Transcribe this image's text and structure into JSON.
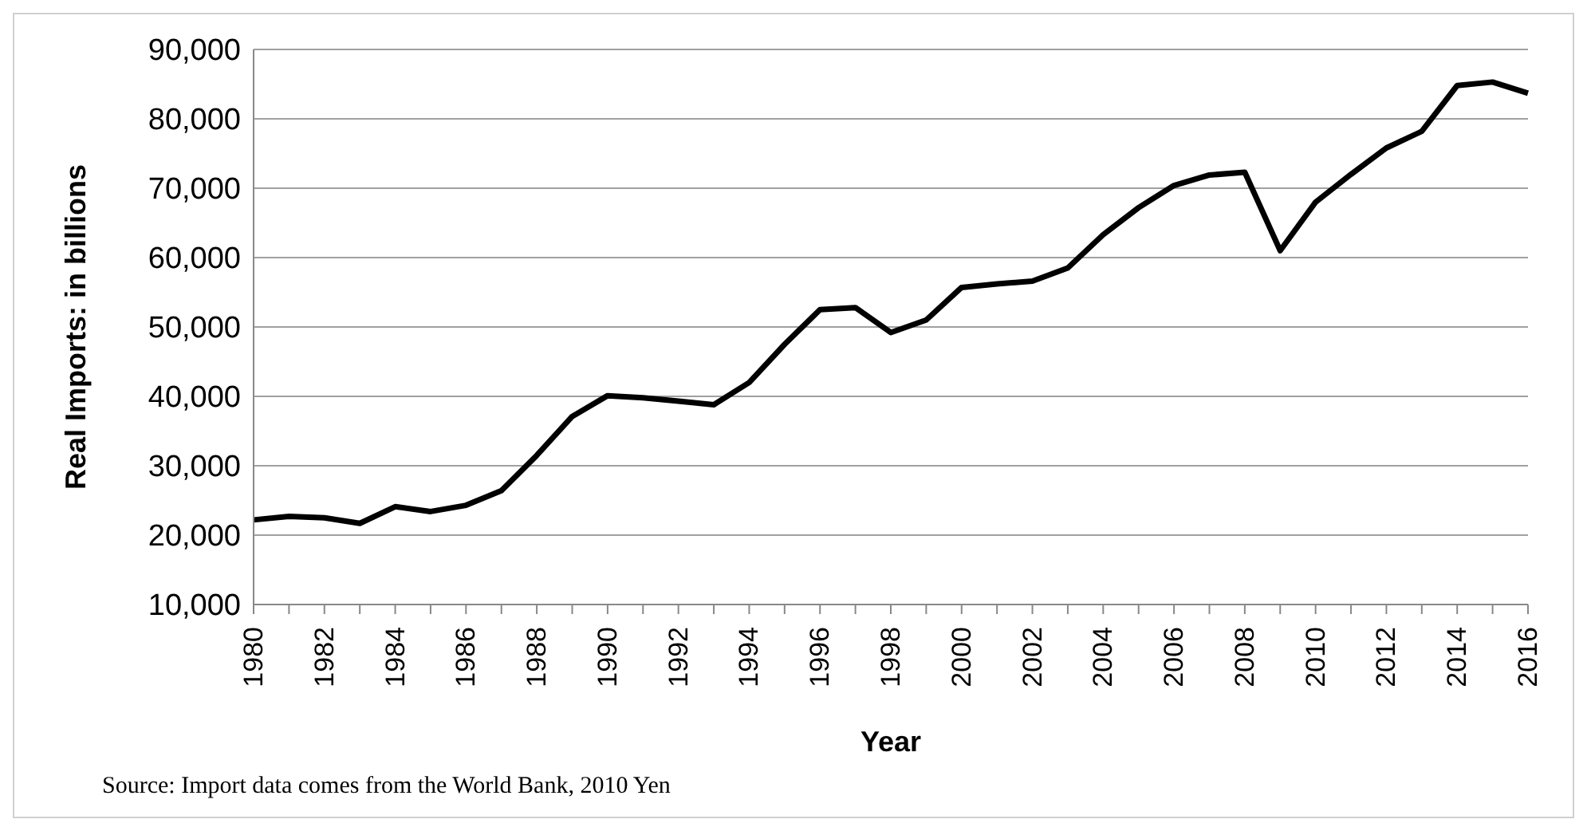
{
  "chart_data": {
    "type": "line",
    "xlabel": "Year",
    "ylabel": "Real Imports: in billions",
    "categories": [
      "1980",
      null,
      "1982",
      null,
      "1984",
      null,
      "1986",
      null,
      "1988",
      null,
      "1990",
      null,
      "1992",
      null,
      "1994",
      null,
      "1996",
      null,
      "1998",
      null,
      "2000",
      null,
      "2002",
      null,
      "2004",
      null,
      "2006",
      null,
      "2008",
      null,
      "2010",
      null,
      "2012",
      null,
      "2014",
      null,
      "2016"
    ],
    "series": [
      {
        "color": "#000000",
        "values": [
          22200,
          22700,
          22500,
          21700,
          24100,
          23400,
          24300,
          26400,
          31500,
          37100,
          40100,
          39800,
          39300,
          38800,
          42000,
          47500,
          52500,
          52800,
          49200,
          51000,
          55700,
          56200,
          56600,
          58500,
          63300,
          67200,
          70400,
          71900,
          72300,
          61000,
          68000,
          72000,
          75800,
          78200,
          84800,
          85300,
          83700
        ]
      }
    ],
    "ylim": [
      10000,
      90000
    ],
    "yticks": [
      {
        "value": 10000,
        "label": "10,000"
      },
      {
        "value": 20000,
        "label": "20,000"
      },
      {
        "value": 30000,
        "label": "30,000"
      },
      {
        "value": 40000,
        "label": "40,000"
      },
      {
        "value": 50000,
        "label": "50,000"
      },
      {
        "value": 60000,
        "label": "60,000"
      },
      {
        "value": 70000,
        "label": "70,000"
      },
      {
        "value": 80000,
        "label": "80,000"
      },
      {
        "value": 90000,
        "label": "90,000"
      }
    ],
    "grid": "y",
    "legend": false,
    "marker": "none",
    "line_style": "solid",
    "annotations": [
      "Source: Import data comes from the World Bank, 2010 Yen"
    ]
  }
}
